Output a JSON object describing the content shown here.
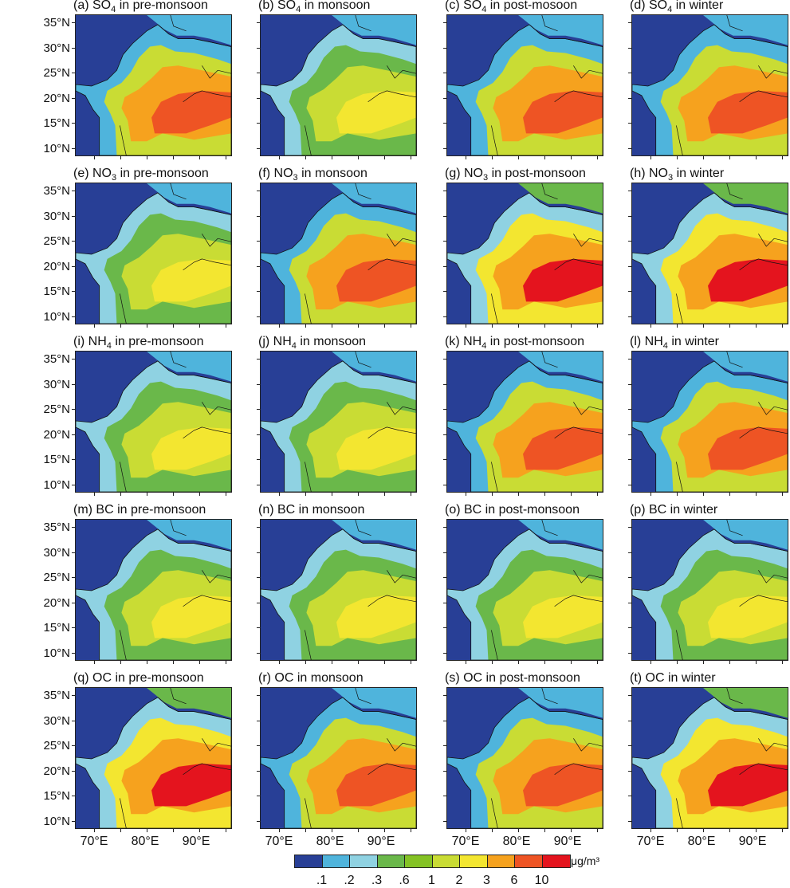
{
  "panels": [
    {
      "row": 0,
      "col": 0,
      "title_pre": "(a) SO",
      "title_sub": "4",
      "title_post": " in pre-monsoon",
      "scheme": "so4_pre"
    },
    {
      "row": 0,
      "col": 1,
      "title_pre": "(b) SO",
      "title_sub": "4",
      "title_post": " in monsoon",
      "scheme": "so4_mon"
    },
    {
      "row": 0,
      "col": 2,
      "title_pre": "(c) SO",
      "title_sub": "4",
      "title_post": " in post-mosoon",
      "scheme": "so4_post"
    },
    {
      "row": 0,
      "col": 3,
      "title_pre": "(d) SO",
      "title_sub": "4",
      "title_post": " in winter",
      "scheme": "so4_win"
    },
    {
      "row": 1,
      "col": 0,
      "title_pre": "(e) NO",
      "title_sub": "3",
      "title_post": " in pre-monsoon",
      "scheme": "no3_pre"
    },
    {
      "row": 1,
      "col": 1,
      "title_pre": "(f) NO",
      "title_sub": "3",
      "title_post": " in monsoon",
      "scheme": "no3_mon"
    },
    {
      "row": 1,
      "col": 2,
      "title_pre": "(g) NO",
      "title_sub": "3",
      "title_post": " in post-monsoon",
      "scheme": "no3_post"
    },
    {
      "row": 1,
      "col": 3,
      "title_pre": "(h) NO",
      "title_sub": "3",
      "title_post": " in winter",
      "scheme": "no3_win"
    },
    {
      "row": 2,
      "col": 0,
      "title_pre": "(i) NH",
      "title_sub": "4",
      "title_post": " in pre-monsoon",
      "scheme": "nh4_pre"
    },
    {
      "row": 2,
      "col": 1,
      "title_pre": "(j) NH",
      "title_sub": "4",
      "title_post": " in monsoon",
      "scheme": "nh4_mon"
    },
    {
      "row": 2,
      "col": 2,
      "title_pre": "(k) NH",
      "title_sub": "4",
      "title_post": " in post-monsoon",
      "scheme": "nh4_post"
    },
    {
      "row": 2,
      "col": 3,
      "title_pre": "(l) NH",
      "title_sub": "4",
      "title_post": " in winter",
      "scheme": "nh4_win"
    },
    {
      "row": 3,
      "col": 0,
      "title_pre": "(m) BC in pre-monsoon",
      "title_sub": "",
      "title_post": "",
      "scheme": "bc_pre"
    },
    {
      "row": 3,
      "col": 1,
      "title_pre": "(n) BC in monsoon",
      "title_sub": "",
      "title_post": "",
      "scheme": "bc_mon"
    },
    {
      "row": 3,
      "col": 2,
      "title_pre": "(o) BC in post-monsoon",
      "title_sub": "",
      "title_post": "",
      "scheme": "bc_post"
    },
    {
      "row": 3,
      "col": 3,
      "title_pre": "(p) BC in winter",
      "title_sub": "",
      "title_post": "",
      "scheme": "bc_win"
    },
    {
      "row": 4,
      "col": 0,
      "title_pre": "(q) OC in pre-monsoon",
      "title_sub": "",
      "title_post": "",
      "scheme": "oc_pre"
    },
    {
      "row": 4,
      "col": 1,
      "title_pre": "(r) OC in monsoon",
      "title_sub": "",
      "title_post": "",
      "scheme": "oc_mon"
    },
    {
      "row": 4,
      "col": 2,
      "title_pre": "(s) OC in post-monsoon",
      "title_sub": "",
      "title_post": "",
      "scheme": "oc_post"
    },
    {
      "row": 4,
      "col": 3,
      "title_pre": "(t) OC in winter",
      "title_sub": "",
      "title_post": "",
      "scheme": "oc_win"
    }
  ],
  "lat_labels": [
    "35°N",
    "30°N",
    "25°N",
    "20°N",
    "15°N",
    "10°N"
  ],
  "lon_labels": [
    "70°E",
    "80°E",
    "90°E"
  ],
  "colorbar": {
    "colors": [
      "#283f96",
      "#4fb4dc",
      "#8fd2e2",
      "#6ab84a",
      "#84c224",
      "#c9dc34",
      "#f3e630",
      "#f6a21e",
      "#ee5424",
      "#e4141e"
    ],
    "labels": [
      ".1",
      ".2",
      ".3",
      ".6",
      "1",
      "2",
      "3",
      "6",
      "10"
    ],
    "unit": "μg/m³"
  },
  "level_colors": {
    "ocean": "#283f96",
    "land_low": "#4fb4dc",
    "coast": "#8fd2e2",
    "green": "#6ab84a",
    "lgreen": "#84c224",
    "yellowgreen": "#c9dc34",
    "yellow": "#f3e630",
    "orange": "#f6a21e",
    "redorange": "#ee5424",
    "red": "#e4141e"
  }
}
